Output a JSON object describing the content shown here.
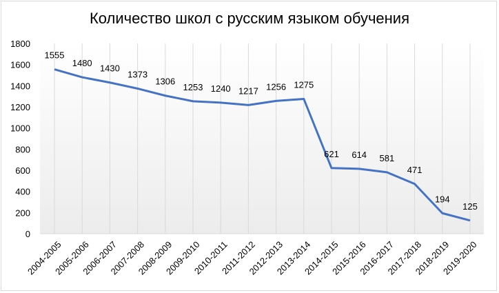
{
  "chart_data": {
    "type": "line",
    "title": "Количество школ с русским языком обучения",
    "xlabel": "",
    "ylabel": "",
    "categories": [
      "2004-2005",
      "2005-2006",
      "2006-2007",
      "2007-2008",
      "2008-2009",
      "2009-2010",
      "2010-2011",
      "2011-2012",
      "2012-2013",
      "2013-2014",
      "2014-2015",
      "2015-2016",
      "2016-2017",
      "2017-2018",
      "2018-2019",
      "2019-2020"
    ],
    "values": [
      1555,
      1480,
      1430,
      1373,
      1306,
      1253,
      1240,
      1217,
      1256,
      1275,
      621,
      614,
      581,
      471,
      194,
      125
    ],
    "ylim": [
      0,
      1800
    ],
    "yticks": [
      0,
      200,
      400,
      600,
      800,
      1000,
      1200,
      1400,
      1600,
      1800
    ],
    "grid": "vertical",
    "legend": "none",
    "data_labels": true,
    "line_color": "#4472c4"
  }
}
